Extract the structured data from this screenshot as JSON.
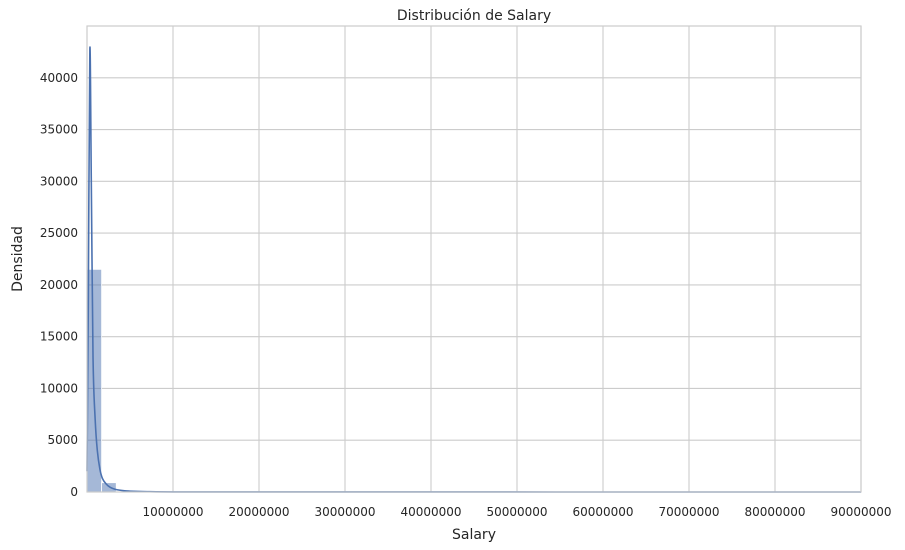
{
  "chart_data": {
    "type": "bar",
    "title": "Distribución de Salary",
    "xlabel": "Salary",
    "ylabel": "Densidad",
    "xlim": [
      0,
      90000000
    ],
    "ylim": [
      0,
      45000
    ],
    "xticks": [
      10000000,
      20000000,
      30000000,
      40000000,
      50000000,
      60000000,
      70000000,
      80000000,
      90000000
    ],
    "xtick_labels": [
      "10000000",
      "20000000",
      "30000000",
      "40000000",
      "50000000",
      "60000000",
      "70000000",
      "80000000",
      "90000000"
    ],
    "yticks": [
      0,
      5000,
      10000,
      15000,
      20000,
      25000,
      30000,
      35000,
      40000
    ],
    "ytick_labels": [
      "0",
      "5000",
      "10000",
      "15000",
      "20000",
      "25000",
      "30000",
      "35000",
      "40000"
    ],
    "grid": true,
    "bar_color": "#4c72b0",
    "line_color": "#4c72b0",
    "bins": [
      {
        "x0": 0,
        "x1": 1700000,
        "value": 21500
      },
      {
        "x0": 1700000,
        "x1": 3400000,
        "value": 900
      },
      {
        "x0": 3400000,
        "x1": 5100000,
        "value": 60
      },
      {
        "x0": 5100000,
        "x1": 6800000,
        "value": 15
      },
      {
        "x0": 6800000,
        "x1": 8500000,
        "value": 5
      }
    ],
    "kde": [
      {
        "x": 0,
        "y": 2000
      },
      {
        "x": 150000,
        "y": 18000
      },
      {
        "x": 330000,
        "y": 42700
      },
      {
        "x": 500000,
        "y": 30000
      },
      {
        "x": 700000,
        "y": 13000
      },
      {
        "x": 950000,
        "y": 7000
      },
      {
        "x": 1200000,
        "y": 4000
      },
      {
        "x": 1500000,
        "y": 2200
      },
      {
        "x": 1800000,
        "y": 1300
      },
      {
        "x": 2200000,
        "y": 800
      },
      {
        "x": 2700000,
        "y": 450
      },
      {
        "x": 3300000,
        "y": 250
      },
      {
        "x": 4000000,
        "y": 150
      },
      {
        "x": 5000000,
        "y": 80
      },
      {
        "x": 7000000,
        "y": 30
      },
      {
        "x": 10000000,
        "y": 10
      },
      {
        "x": 20000000,
        "y": 3
      },
      {
        "x": 90000000,
        "y": 0
      }
    ]
  }
}
